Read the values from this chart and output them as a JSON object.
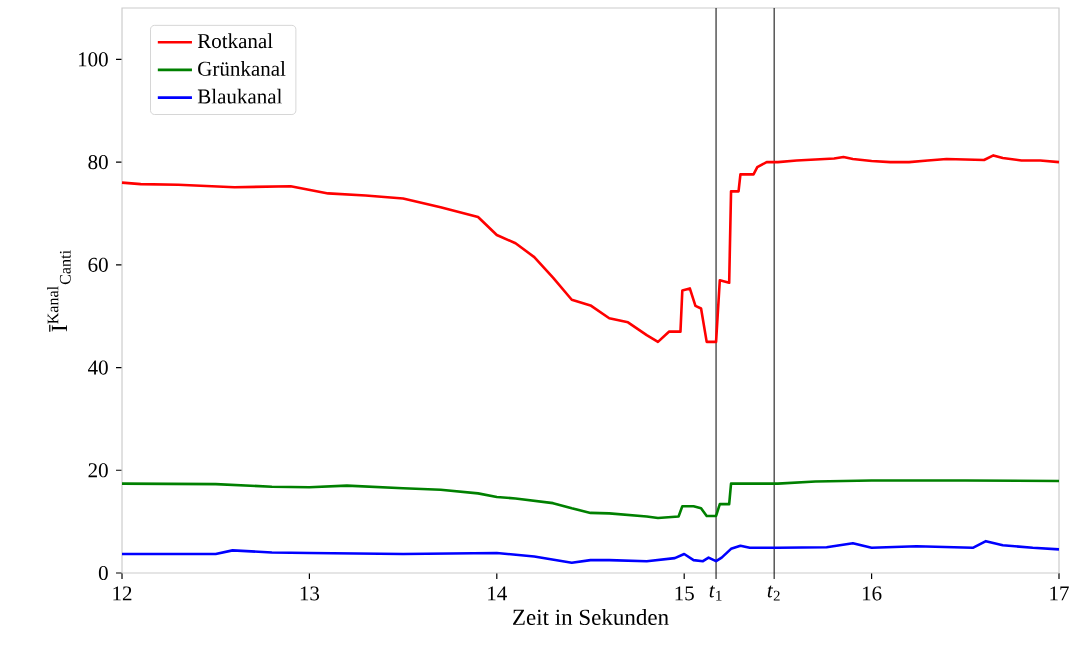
{
  "chart_data": {
    "type": "line",
    "xlabel": "Zeit in Sekunden",
    "ylabel": "Ī$^{Kanal}$$_{Canti}$",
    "xlim": [
      12,
      17
    ],
    "ylim": [
      0,
      110
    ],
    "xticks": [
      12,
      13,
      14,
      15,
      16,
      17
    ],
    "yticks": [
      0,
      20,
      40,
      60,
      80,
      100
    ],
    "legend": "top left",
    "grid": false,
    "marker": "none",
    "line_style": "solid",
    "ref_lines": [
      {
        "axis": "x",
        "value": 15.17,
        "label": "*t*$_{1}$",
        "color": "#000000"
      },
      {
        "axis": "x",
        "value": 15.48,
        "label": "*t*$_{2}$",
        "color": "#000000"
      }
    ],
    "series": [
      {
        "name": "Rotkanal",
        "color": "#ff0000",
        "x": [
          12.0,
          12.1,
          12.3,
          12.6,
          12.9,
          13.1,
          13.3,
          13.5,
          13.7,
          13.9,
          14.0,
          14.1,
          14.2,
          14.3,
          14.4,
          14.5,
          14.6,
          14.7,
          14.8,
          14.86,
          14.92,
          14.98,
          14.99,
          15.03,
          15.06,
          15.09,
          15.12,
          15.17,
          15.19,
          15.24,
          15.25,
          15.29,
          15.3,
          15.37,
          15.39,
          15.44,
          15.5,
          15.6,
          15.7,
          15.8,
          15.85,
          15.9,
          16.0,
          16.1,
          16.2,
          16.3,
          16.4,
          16.5,
          16.6,
          16.65,
          16.7,
          16.8,
          16.9,
          17.0
        ],
        "values": [
          76.0,
          75.7,
          75.6,
          75.1,
          75.3,
          73.9,
          73.5,
          72.9,
          71.2,
          69.3,
          65.8,
          64.2,
          61.5,
          57.5,
          53.2,
          52.1,
          49.6,
          48.8,
          46.3,
          45.0,
          47.0,
          47.0,
          55.0,
          55.4,
          52.0,
          51.5,
          45.0,
          45.0,
          57.0,
          56.5,
          74.3,
          74.3,
          77.6,
          77.6,
          79.0,
          80.0,
          80.0,
          80.3,
          80.5,
          80.7,
          81.0,
          80.6,
          80.2,
          80.0,
          80.0,
          80.3,
          80.6,
          80.5,
          80.4,
          81.3,
          80.8,
          80.3,
          80.3,
          80.0
        ]
      },
      {
        "name": "Grünkanal",
        "color": "#008000",
        "x": [
          12.0,
          12.5,
          12.8,
          13.0,
          13.2,
          13.5,
          13.7,
          13.9,
          14.0,
          14.1,
          14.3,
          14.4,
          14.5,
          14.6,
          14.8,
          14.86,
          14.97,
          14.99,
          15.05,
          15.09,
          15.12,
          15.17,
          15.19,
          15.24,
          15.25,
          15.5,
          15.7,
          16.0,
          16.5,
          17.0
        ],
        "values": [
          17.4,
          17.3,
          16.8,
          16.7,
          17.0,
          16.5,
          16.2,
          15.5,
          14.8,
          14.5,
          13.6,
          12.6,
          11.7,
          11.6,
          11.0,
          10.7,
          11.0,
          13.0,
          13.0,
          12.6,
          11.1,
          11.1,
          13.4,
          13.4,
          17.4,
          17.4,
          17.8,
          18.0,
          18.0,
          17.9
        ]
      },
      {
        "name": "Blaukanal",
        "color": "#0000ff",
        "x": [
          12.0,
          12.5,
          12.59,
          12.8,
          13.0,
          13.5,
          14.0,
          14.2,
          14.4,
          14.5,
          14.6,
          14.8,
          14.95,
          15.0,
          15.05,
          15.1,
          15.13,
          15.17,
          15.2,
          15.25,
          15.3,
          15.35,
          15.5,
          15.76,
          15.9,
          16.0,
          16.24,
          16.54,
          16.61,
          16.7,
          16.86,
          17.0
        ],
        "values": [
          3.7,
          3.7,
          4.4,
          4.0,
          3.9,
          3.7,
          3.9,
          3.2,
          2.0,
          2.5,
          2.5,
          2.3,
          2.9,
          3.7,
          2.5,
          2.3,
          3.0,
          2.3,
          3.0,
          4.7,
          5.3,
          4.9,
          4.9,
          5.0,
          5.8,
          4.9,
          5.2,
          4.9,
          6.2,
          5.4,
          4.9,
          4.6
        ]
      }
    ]
  }
}
